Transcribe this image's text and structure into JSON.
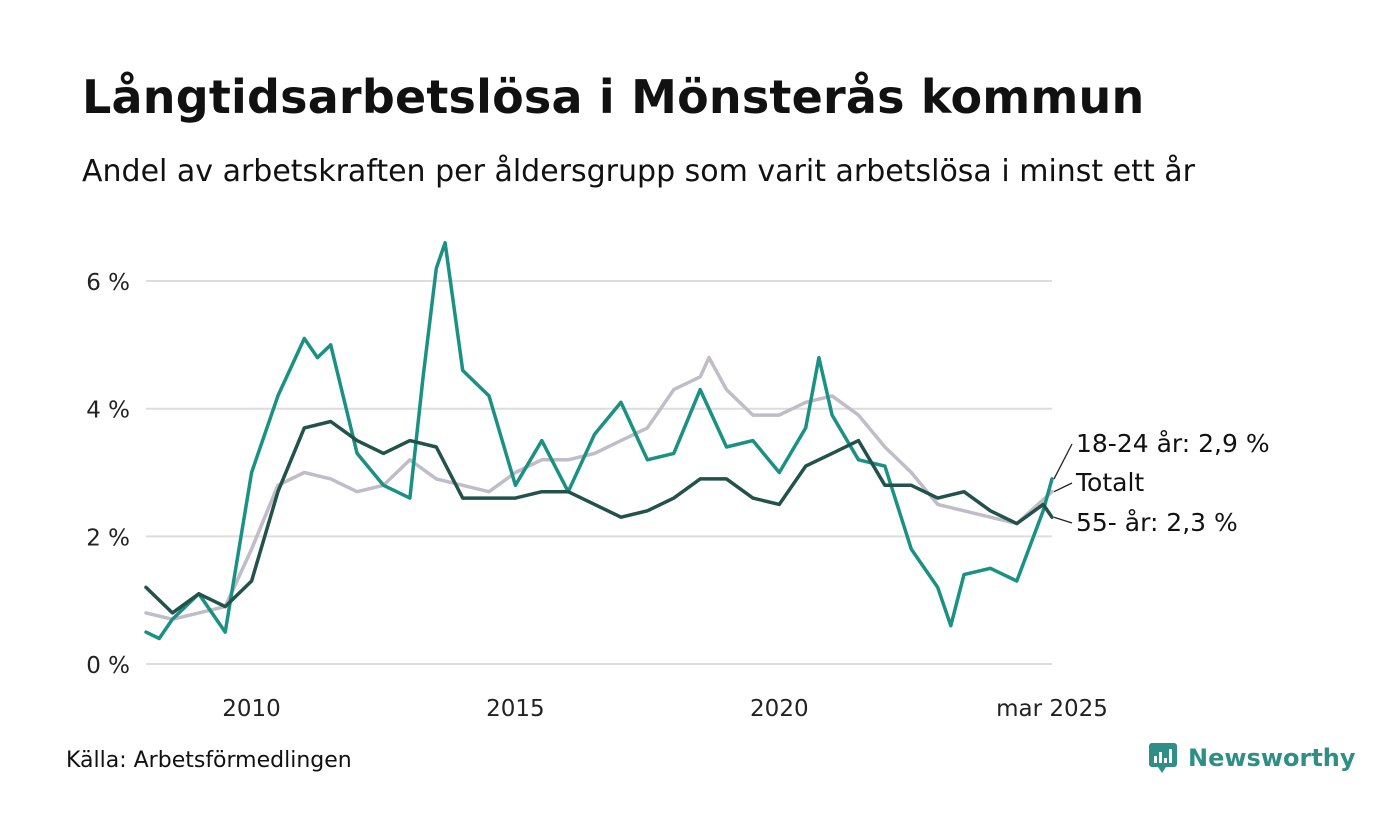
{
  "header": {
    "title": "Långtidsarbetslösa i Mönsterås kommun",
    "subtitle": "Andel av arbetskraften per åldersgrupp som varit arbetslösa i minst ett år"
  },
  "footer": {
    "source": "Källa: Arbetsförmedlingen",
    "brand": "Newsworthy",
    "brand_icon": "newsworthy-logo-icon"
  },
  "chart_data": {
    "type": "line",
    "title": "Långtidsarbetslösa i Mönsterås kommun",
    "subtitle": "Andel av arbetskraften per åldersgrupp som varit arbetslösa i minst ett år",
    "xlabel": "",
    "ylabel": "",
    "x_range": [
      "2008-01",
      "2025-03"
    ],
    "ylim": [
      0,
      6.8
    ],
    "y_ticks": [
      0,
      2,
      4,
      6
    ],
    "y_tick_labels": [
      "0 %",
      "2 %",
      "4 %",
      "6 %"
    ],
    "x_ticks": [
      "2010-01",
      "2015-01",
      "2020-01",
      "2025-03"
    ],
    "x_tick_labels": [
      "2010",
      "2015",
      "2020",
      "mar 2025"
    ],
    "grid": true,
    "legend": "direct labels at right end of lines",
    "series": [
      {
        "name": "Totalt",
        "label": "Totalt",
        "color": "#c0bcc8",
        "points": [
          [
            "2008-01",
            0.8
          ],
          [
            "2008-07",
            0.7
          ],
          [
            "2009-01",
            0.8
          ],
          [
            "2009-07",
            0.9
          ],
          [
            "2010-01",
            1.8
          ],
          [
            "2010-07",
            2.8
          ],
          [
            "2011-01",
            3.0
          ],
          [
            "2011-07",
            2.9
          ],
          [
            "2012-01",
            2.7
          ],
          [
            "2012-07",
            2.8
          ],
          [
            "2013-01",
            3.2
          ],
          [
            "2013-07",
            2.9
          ],
          [
            "2014-01",
            2.8
          ],
          [
            "2014-07",
            2.7
          ],
          [
            "2015-01",
            3.0
          ],
          [
            "2015-07",
            3.2
          ],
          [
            "2016-01",
            3.2
          ],
          [
            "2016-07",
            3.3
          ],
          [
            "2017-01",
            3.5
          ],
          [
            "2017-07",
            3.7
          ],
          [
            "2018-01",
            4.3
          ],
          [
            "2018-07",
            4.5
          ],
          [
            "2018-09",
            4.8
          ],
          [
            "2019-01",
            4.3
          ],
          [
            "2019-07",
            3.9
          ],
          [
            "2020-01",
            3.9
          ],
          [
            "2020-07",
            4.1
          ],
          [
            "2021-01",
            4.2
          ],
          [
            "2021-07",
            3.9
          ],
          [
            "2022-01",
            3.4
          ],
          [
            "2022-07",
            3.0
          ],
          [
            "2023-01",
            2.5
          ],
          [
            "2023-07",
            2.4
          ],
          [
            "2024-01",
            2.3
          ],
          [
            "2024-07",
            2.2
          ],
          [
            "2025-03",
            2.7
          ]
        ]
      },
      {
        "name": "18-24 år",
        "label": "18-24 år: 2,9 %",
        "color": "#1a9183",
        "points": [
          [
            "2008-01",
            0.5
          ],
          [
            "2008-04",
            0.4
          ],
          [
            "2008-07",
            0.7
          ],
          [
            "2009-01",
            1.1
          ],
          [
            "2009-07",
            0.5
          ],
          [
            "2010-01",
            3.0
          ],
          [
            "2010-07",
            4.2
          ],
          [
            "2011-01",
            5.1
          ],
          [
            "2011-04",
            4.8
          ],
          [
            "2011-07",
            5.0
          ],
          [
            "2012-01",
            3.3
          ],
          [
            "2012-07",
            2.8
          ],
          [
            "2013-01",
            2.6
          ],
          [
            "2013-04",
            4.5
          ],
          [
            "2013-07",
            6.2
          ],
          [
            "2013-09",
            6.6
          ],
          [
            "2014-01",
            4.6
          ],
          [
            "2014-07",
            4.2
          ],
          [
            "2015-01",
            2.8
          ],
          [
            "2015-07",
            3.5
          ],
          [
            "2016-01",
            2.7
          ],
          [
            "2016-07",
            3.6
          ],
          [
            "2017-01",
            4.1
          ],
          [
            "2017-07",
            3.2
          ],
          [
            "2018-01",
            3.3
          ],
          [
            "2018-07",
            4.3
          ],
          [
            "2019-01",
            3.4
          ],
          [
            "2019-07",
            3.5
          ],
          [
            "2020-01",
            3.0
          ],
          [
            "2020-07",
            3.7
          ],
          [
            "2020-10",
            4.8
          ],
          [
            "2021-01",
            3.9
          ],
          [
            "2021-07",
            3.2
          ],
          [
            "2022-01",
            3.1
          ],
          [
            "2022-07",
            1.8
          ],
          [
            "2023-01",
            1.2
          ],
          [
            "2023-04",
            0.6
          ],
          [
            "2023-07",
            1.4
          ],
          [
            "2024-01",
            1.5
          ],
          [
            "2024-07",
            1.3
          ],
          [
            "2025-01",
            2.4
          ],
          [
            "2025-03",
            2.9
          ]
        ]
      },
      {
        "name": "55- år",
        "label": "55- år: 2,3 %",
        "color": "#22524a",
        "points": [
          [
            "2008-01",
            1.2
          ],
          [
            "2008-07",
            0.8
          ],
          [
            "2009-01",
            1.1
          ],
          [
            "2009-07",
            0.9
          ],
          [
            "2010-01",
            1.3
          ],
          [
            "2010-07",
            2.7
          ],
          [
            "2011-01",
            3.7
          ],
          [
            "2011-07",
            3.8
          ],
          [
            "2012-01",
            3.5
          ],
          [
            "2012-07",
            3.3
          ],
          [
            "2013-01",
            3.5
          ],
          [
            "2013-07",
            3.4
          ],
          [
            "2014-01",
            2.6
          ],
          [
            "2014-07",
            2.6
          ],
          [
            "2015-01",
            2.6
          ],
          [
            "2015-07",
            2.7
          ],
          [
            "2016-01",
            2.7
          ],
          [
            "2016-07",
            2.5
          ],
          [
            "2017-01",
            2.3
          ],
          [
            "2017-07",
            2.4
          ],
          [
            "2018-01",
            2.6
          ],
          [
            "2018-07",
            2.9
          ],
          [
            "2019-01",
            2.9
          ],
          [
            "2019-07",
            2.6
          ],
          [
            "2020-01",
            2.5
          ],
          [
            "2020-07",
            3.1
          ],
          [
            "2021-01",
            3.3
          ],
          [
            "2021-07",
            3.5
          ],
          [
            "2022-01",
            2.8
          ],
          [
            "2022-07",
            2.8
          ],
          [
            "2023-01",
            2.6
          ],
          [
            "2023-07",
            2.7
          ],
          [
            "2024-01",
            2.4
          ],
          [
            "2024-07",
            2.2
          ],
          [
            "2025-01",
            2.5
          ],
          [
            "2025-03",
            2.3
          ]
        ]
      }
    ]
  }
}
